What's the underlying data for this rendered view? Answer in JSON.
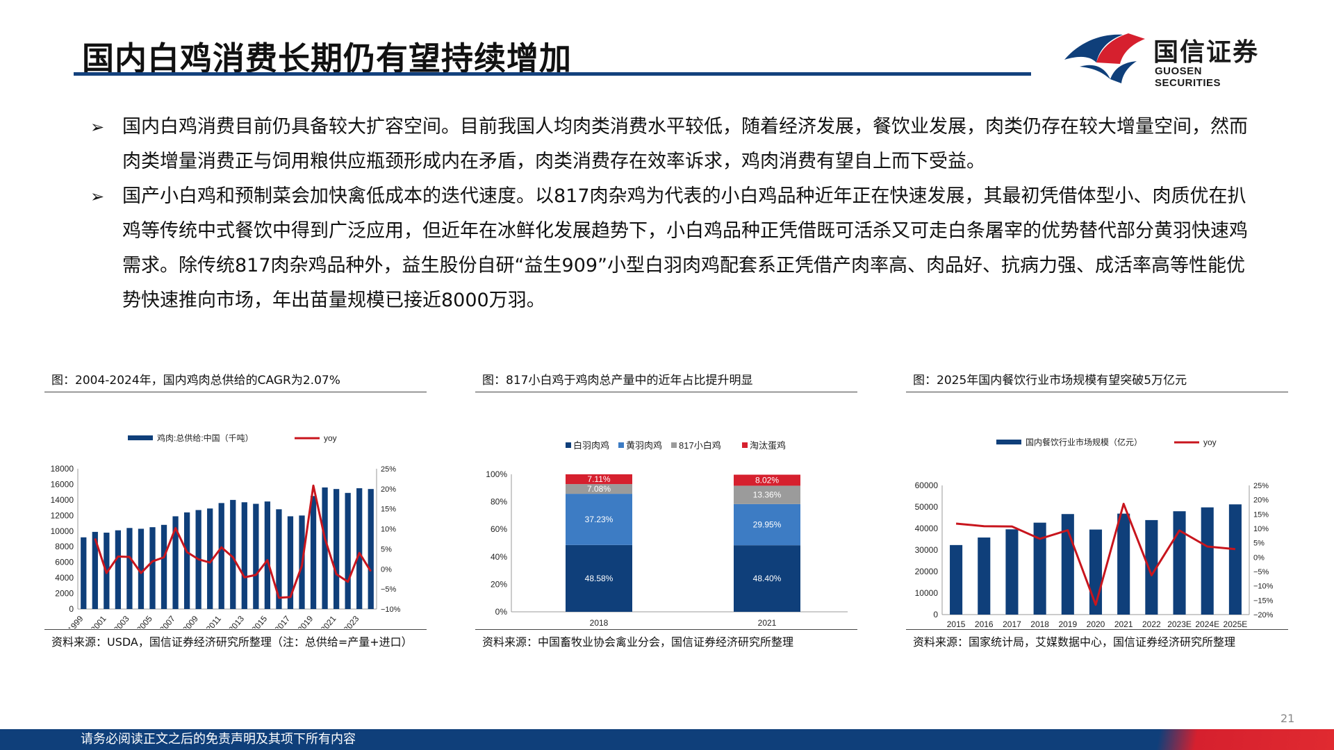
{
  "page": {
    "title": "国内白鸡消费长期仍有望持续增加",
    "page_number": "21",
    "footer": "请务必阅读正文之后的免责声明及其项下所有内容"
  },
  "logo": {
    "cn": "国信证券",
    "en": "GUOSEN SECURITIES"
  },
  "bullets": [
    {
      "mark": "➢",
      "text": "国内白鸡消费目前仍具备较大扩容空间。目前我国人均肉类消费水平较低，随着经济发展，餐饮业发展，肉类仍存在较大增量空间，然而肉类增量消费正与饲用粮供应瓶颈形成内在矛盾，肉类消费存在效率诉求，鸡肉消费有望自上而下受益。"
    },
    {
      "mark": "➢",
      "text": "国产小白鸡和预制菜会加快禽低成本的迭代速度。以817肉杂鸡为代表的小白鸡品种近年正在快速发展，其最初凭借体型小、肉质优在扒鸡等传统中式餐饮中得到广泛应用，但近年在冰鲜化发展趋势下，小白鸡品种正凭借既可活杀又可走白条屠宰的优势替代部分黄羽快速鸡需求。除传统817肉杂鸡品种外，益生股份自研“益生909”小型白羽肉鸡配套系正凭借产肉率高、肉品好、抗病力强、成活率高等性能优势快速推向市场，年出苗量规模已接近8000万羽。"
    }
  ],
  "panels": [
    {
      "caption": "图：2004-2024年，国内鸡肉总供给的CAGR为2.07%",
      "source": "资料来源：USDA，国信证券经济研究所整理（注：总供给=产量+进口）"
    },
    {
      "caption": "图：817小白鸡于鸡肉总产量中的近年占比提升明显",
      "source": "资料来源：中国畜牧业协会禽业分会，国信证券经济研究所整理"
    },
    {
      "caption": "图：2025年国内餐饮行业市场规模有望突破5万亿元",
      "source": "资料来源：国家统计局，艾媒数据中心，国信证券经济研究所整理"
    }
  ],
  "chart_data": [
    {
      "type": "bar",
      "legend": [
        "鸡肉:总供给:中国（千吨）",
        "yoy"
      ],
      "x": [
        1999,
        2000,
        2001,
        2002,
        2003,
        2004,
        2005,
        2006,
        2007,
        2008,
        2009,
        2010,
        2011,
        2012,
        2013,
        2014,
        2015,
        2016,
        2017,
        2018,
        2019,
        2020,
        2021,
        2022,
        2023,
        2024
      ],
      "x_tick_labels": [
        "1999",
        "2001",
        "2003",
        "2005",
        "2007",
        "2009",
        "2011",
        "2013",
        "2015",
        "2017",
        "2019",
        "2021",
        "2023"
      ],
      "series": [
        {
          "name": "鸡肉:总供给:中国（千吨）",
          "axis": "left",
          "kind": "bar",
          "color": "#0f3f7a",
          "values": [
            9200,
            9900,
            9800,
            10100,
            10400,
            10300,
            10500,
            10800,
            11900,
            12400,
            12700,
            12900,
            13600,
            14000,
            13700,
            13500,
            13800,
            12800,
            11900,
            12000,
            14500,
            15600,
            15400,
            14900,
            15500,
            15400
          ]
        },
        {
          "name": "yoy",
          "axis": "right",
          "kind": "line",
          "color": "#c8151d",
          "values": [
            null,
            7.6,
            -1.0,
            3.1,
            3.0,
            -1.0,
            1.9,
            2.9,
            10.2,
            4.2,
            2.4,
            1.6,
            5.4,
            2.9,
            -2.1,
            -1.5,
            2.2,
            -7.2,
            -7.0,
            0.8,
            20.8,
            7.6,
            -1.3,
            -3.2,
            4.0,
            -0.6
          ]
        }
      ],
      "y_left": {
        "ticks": [
          0,
          2000,
          4000,
          6000,
          8000,
          10000,
          12000,
          14000,
          16000,
          18000
        ],
        "lim": [
          0,
          18000
        ]
      },
      "y_right": {
        "ticks": [
          "25%",
          "20%",
          "15%",
          "10%",
          "5%",
          "0%",
          "-5%",
          "-10%"
        ],
        "lim": [
          -10,
          25
        ]
      }
    },
    {
      "type": "bar",
      "stacked": true,
      "categories": [
        "2018",
        "2021"
      ],
      "legend": [
        "白羽肉鸡",
        "黄羽肉鸡",
        "817小白鸡",
        "淘汰蛋鸡"
      ],
      "series": [
        {
          "name": "白羽肉鸡",
          "color": "#0f3f7a",
          "values": [
            48.58,
            48.4
          ],
          "labels": [
            "48.58%",
            "48.40%"
          ]
        },
        {
          "name": "黄羽肉鸡",
          "color": "#3d7cc4",
          "values": [
            37.23,
            29.95
          ],
          "labels": [
            "37.23%",
            "29.95%"
          ]
        },
        {
          "name": "817小白鸡",
          "color": "#9b9b9b",
          "values": [
            7.08,
            13.36
          ],
          "labels": [
            "7.08%",
            "13.36%"
          ]
        },
        {
          "name": "淘汰蛋鸡",
          "color": "#d6202e",
          "values": [
            7.11,
            8.02
          ],
          "labels": [
            "7.11%",
            "8.02%"
          ]
        }
      ],
      "y_ticks": [
        "0%",
        "20%",
        "40%",
        "60%",
        "80%",
        "100%"
      ],
      "ylim": [
        0,
        100
      ]
    },
    {
      "type": "bar",
      "legend": [
        "国内餐饮行业市场规模（亿元）",
        "yoy"
      ],
      "categories": [
        "2015",
        "2016",
        "2017",
        "2018",
        "2019",
        "2020",
        "2021",
        "2022",
        "2023E",
        "2024E",
        "2025E"
      ],
      "series": [
        {
          "name": "国内餐饮行业市场规模（亿元）",
          "axis": "left",
          "kind": "bar",
          "color": "#0f3f7a",
          "values": [
            32300,
            35800,
            39600,
            42700,
            46700,
            39500,
            46900,
            43900,
            48000,
            49800,
            51200
          ]
        },
        {
          "name": "yoy",
          "axis": "right",
          "kind": "line",
          "color": "#c8151d",
          "values": [
            11.7,
            10.8,
            10.7,
            6.4,
            9.4,
            -16.6,
            18.6,
            -6.3,
            9.3,
            3.7,
            2.8
          ]
        }
      ],
      "y_left": {
        "ticks": [
          0,
          10000,
          20000,
          30000,
          40000,
          50000,
          60000
        ],
        "lim": [
          0,
          60000
        ]
      },
      "y_right": {
        "ticks": [
          "25%",
          "20%",
          "15%",
          "10%",
          "5%",
          "0%",
          "-5%",
          "-10%",
          "-15%",
          "-20%"
        ],
        "lim": [
          -20,
          25
        ]
      }
    }
  ]
}
